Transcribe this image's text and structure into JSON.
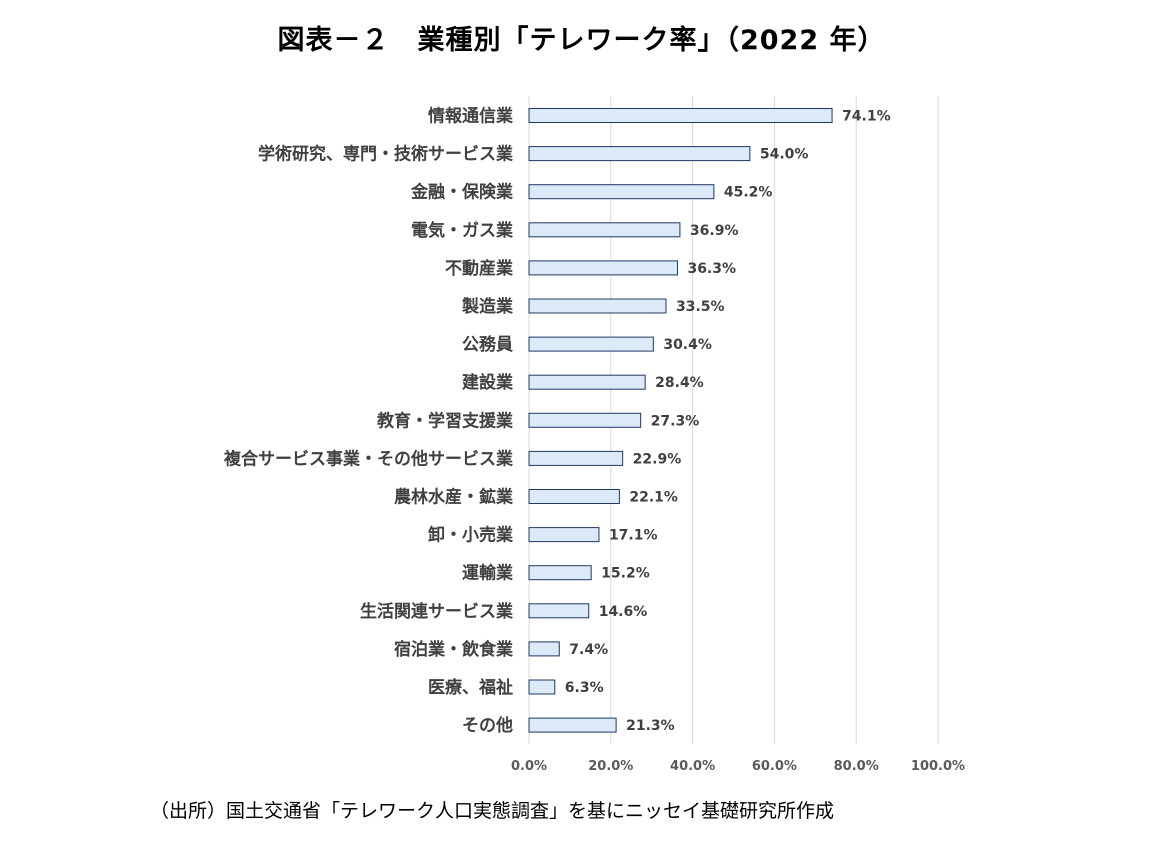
{
  "title": "図表－２　業種別「テレワーク率」（2022 年）",
  "source": "（出所）国土交通省「テレワーク人口実態調査」を基にニッセイ基礎研究所作成",
  "chart_data": {
    "type": "bar",
    "orientation": "horizontal",
    "title": "図表－２　業種別「テレワーク率」（2022 年）",
    "categories": [
      "情報通信業",
      "学術研究、専門・技術サービス業",
      "金融・保険業",
      "電気・ガス業",
      "不動産業",
      "製造業",
      "公務員",
      "建設業",
      "教育・学習支援業",
      "複合サービス事業・その他サービス業",
      "農林水産・鉱業",
      "卸・小売業",
      "運輸業",
      "生活関連サービス業",
      "宿泊業・飲食業",
      "医療、福祉",
      "その他"
    ],
    "values": [
      74.1,
      54.0,
      45.2,
      36.9,
      36.3,
      33.5,
      30.4,
      28.4,
      27.3,
      22.9,
      22.1,
      17.1,
      15.2,
      14.6,
      7.4,
      6.3,
      21.3
    ],
    "value_labels": [
      "74.1%",
      "54.0%",
      "45.2%",
      "36.9%",
      "36.3%",
      "33.5%",
      "30.4%",
      "28.4%",
      "27.3%",
      "22.9%",
      "22.1%",
      "17.1%",
      "15.2%",
      "14.6%",
      "7.4%",
      "6.3%",
      "21.3%"
    ],
    "xlim": [
      0,
      100
    ],
    "xticks": [
      0,
      20,
      40,
      60,
      80,
      100
    ],
    "xtick_labels": [
      "0.0%",
      "20.0%",
      "40.0%",
      "60.0%",
      "80.0%",
      "100.0%"
    ],
    "grid": "vertical",
    "legend": "none",
    "colors": {
      "bar_fill": "#dce9f7",
      "bar_stroke": "#1f3864",
      "grid": "#d9d9d9",
      "label_text": "#404040"
    }
  }
}
